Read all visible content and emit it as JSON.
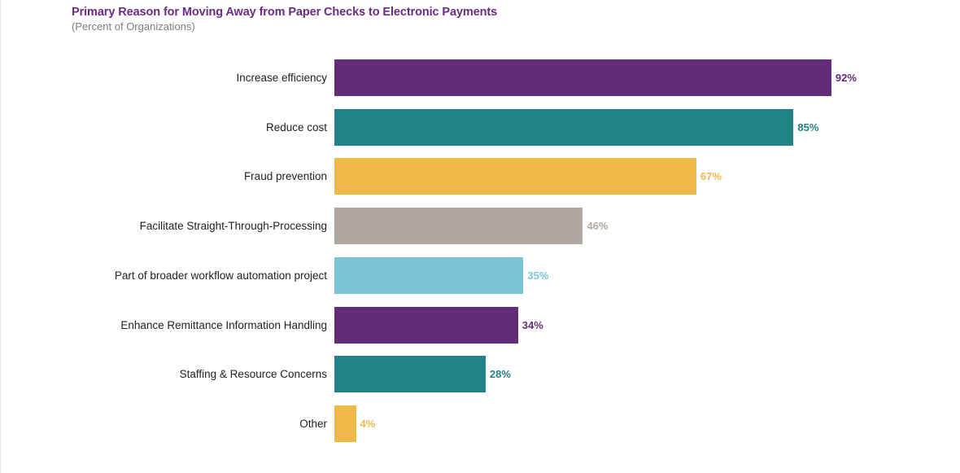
{
  "chart": {
    "title": "Primary Reason for Moving Away from Paper Checks to Electronic Payments",
    "subtitle": "(Percent of Organizations)"
  },
  "rows": [
    {
      "label": "Increase efficiency",
      "value": 92,
      "display": "92%",
      "color": "#652b7b"
    },
    {
      "label": "Reduce cost",
      "value": 85,
      "display": "85%",
      "color": "#218287"
    },
    {
      "label": "Fraud prevention",
      "value": 67,
      "display": "67%",
      "color": "#efb94a"
    },
    {
      "label": "Facilitate Straight-Through-Processing",
      "value": 46,
      "display": "46%",
      "color": "#afa89f"
    },
    {
      "label": "Part of broader workflow automation project",
      "value": 35,
      "display": "35%",
      "color": "#7ac4d4"
    },
    {
      "label": "Enhance Remittance Information Handling",
      "value": 34,
      "display": "34%",
      "color": "#652b7b"
    },
    {
      "label": "Staffing & Resource Concerns",
      "value": 28,
      "display": "28%",
      "color": "#218287"
    },
    {
      "label": "Other",
      "value": 4,
      "display": "4%",
      "color": "#efb94a"
    }
  ],
  "chart_data": {
    "type": "bar",
    "orientation": "horizontal",
    "title": "Primary Reason for Moving Away from Paper Checks to Electronic Payments",
    "subtitle": "(Percent of Organizations)",
    "categories": [
      "Increase efficiency",
      "Reduce cost",
      "Fraud prevention",
      "Facilitate Straight-Through-Processing",
      "Part of broader workflow automation project",
      "Enhance Remittance Information Handling",
      "Staffing & Resource Concerns",
      "Other"
    ],
    "values": [
      92,
      85,
      67,
      46,
      35,
      34,
      28,
      4
    ],
    "unit": "%",
    "xlabel": "",
    "ylabel": "",
    "xlim": [
      0,
      100
    ],
    "grid": false,
    "legend": null,
    "data_labels": true
  }
}
